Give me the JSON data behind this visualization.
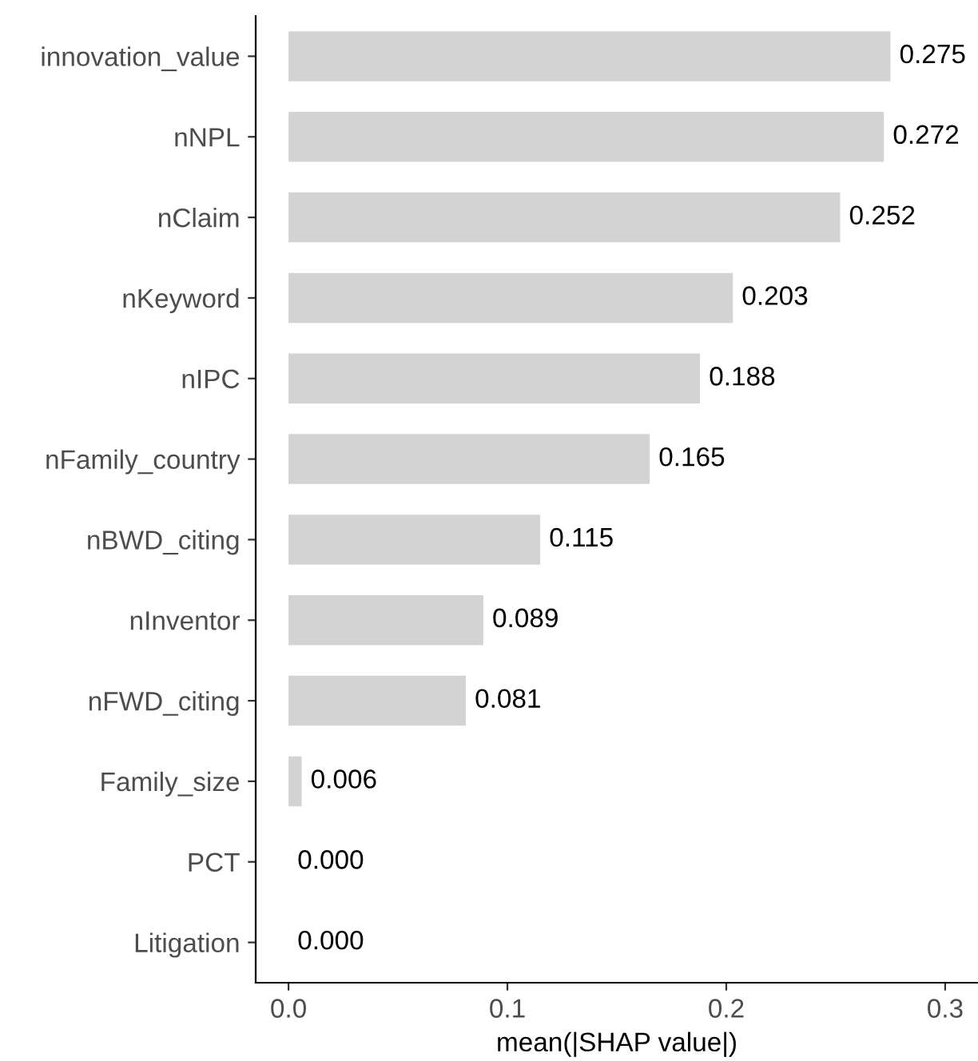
{
  "chart_data": {
    "type": "bar",
    "orientation": "horizontal",
    "xlabel": "mean(|SHAP value|)",
    "categories": [
      "innovation_value",
      "nNPL",
      "nClaim",
      "nKeyword",
      "nIPC",
      "nFamily_country",
      "nBWD_citing",
      "nInventor",
      "nFWD_citing",
      "Family_size",
      "PCT",
      "Litigation"
    ],
    "values": [
      0.275,
      0.272,
      0.252,
      0.203,
      0.188,
      0.165,
      0.115,
      0.089,
      0.081,
      0.006,
      0.0,
      0.0
    ],
    "value_labels": [
      "0.275",
      "0.272",
      "0.252",
      "0.203",
      "0.188",
      "0.165",
      "0.115",
      "0.089",
      "0.081",
      "0.006",
      "0.000",
      "0.000"
    ],
    "color": "#d3d3d3",
    "xlim": [
      -0.015,
      0.315
    ],
    "xticks": [
      {
        "value": 0,
        "label": "0.0"
      },
      0.1,
      0.2,
      0.3
    ],
    "grid": false,
    "legend": false
  }
}
